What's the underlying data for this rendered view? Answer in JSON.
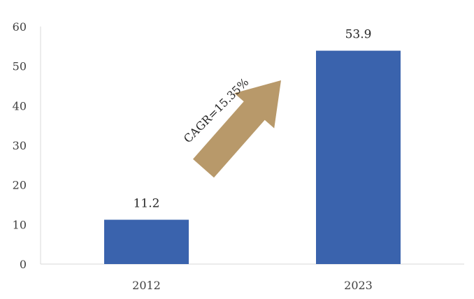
{
  "chart_data": {
    "type": "bar",
    "categories": [
      "2012",
      "2023"
    ],
    "values": [
      11.2,
      53.9
    ],
    "data_labels": [
      "11.2",
      "53.9"
    ],
    "ylim": [
      0,
      60
    ],
    "yticks": [
      0,
      10,
      20,
      30,
      40,
      50,
      60
    ],
    "ytick_labels": [
      "0",
      "10",
      "20",
      "30",
      "40",
      "50",
      "60"
    ],
    "grid": false,
    "bar_color": "#3a63ad",
    "annotation": {
      "text": "CAGR=15.35%",
      "arrow_color": "#b8996a"
    }
  }
}
